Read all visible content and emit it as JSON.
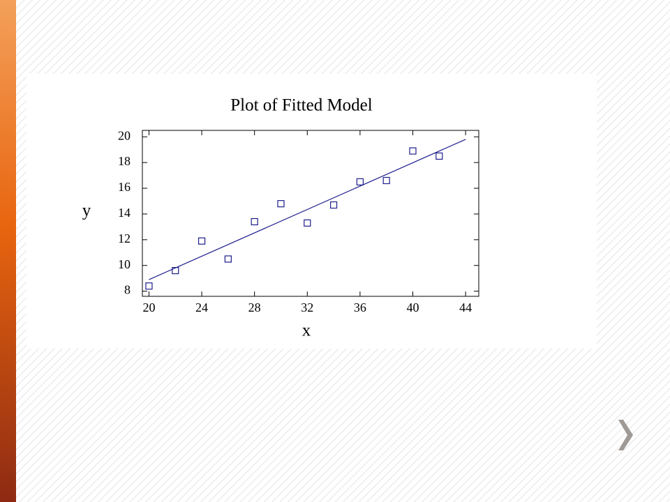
{
  "chart_data": {
    "type": "scatter",
    "title": "Plot of Fitted Model",
    "x_label": "x",
    "y_label": "y",
    "series": [
      {
        "type": "scatter",
        "color": "#1c1c8c",
        "x": [
          20,
          22,
          24,
          26,
          28,
          30,
          32,
          34,
          36,
          38,
          40,
          42
        ],
        "values": [
          8.4,
          9.6,
          11.9,
          10.5,
          13.4,
          14.8,
          13.3,
          14.7,
          16.5,
          16.6,
          18.9,
          18.5
        ]
      },
      {
        "type": "line",
        "color": "#1c1c8c",
        "x": [
          20,
          44
        ],
        "values": [
          8.9,
          19.8
        ]
      }
    ],
    "xlim": [
      19.5,
      45
    ],
    "ylim": [
      7.6,
      20.5
    ],
    "xticks": [
      20,
      24,
      28,
      32,
      36,
      40,
      44
    ],
    "yticks": [
      8,
      10,
      12,
      14,
      16,
      18,
      20
    ]
  }
}
